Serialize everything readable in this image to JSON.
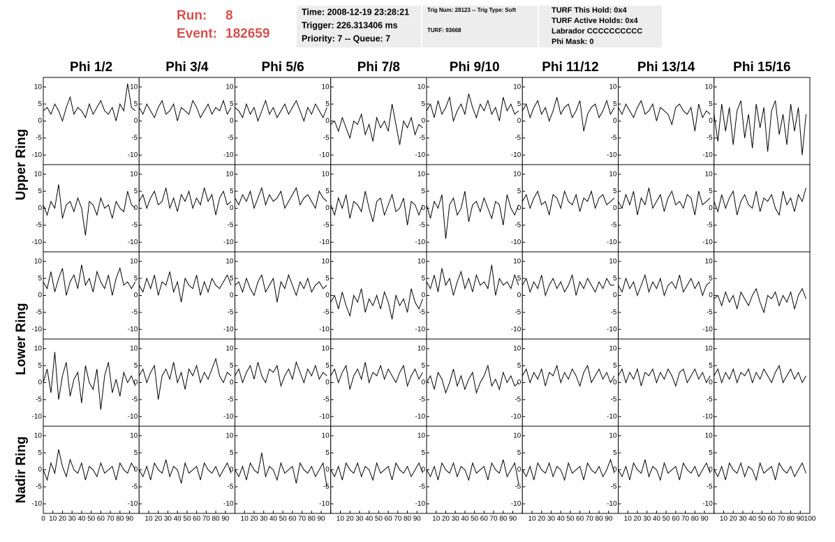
{
  "header": {
    "run_label": "Run:",
    "run": "8",
    "event_label": "Event:",
    "event": "182659",
    "box1": [
      "Time: 2008-12-19 23:28:21",
      "Trigger: 226.313406 ms",
      "Priority: 7 -- Queue: 7"
    ],
    "box2": [
      "Trig Num: 28123 -- Trig Type: Soft",
      "TURF: 93668"
    ],
    "box3": [
      "TURF This Hold: 0x4",
      "TURF Active Holds: 0x4",
      "Labrador CCCCCCCCCC",
      "Phi Mask: 0"
    ]
  },
  "chart_data": {
    "type": "line",
    "color": "#000000",
    "columns": [
      "Phi 1/2",
      "Phi 3/4",
      "Phi 5/6",
      "Phi 7/8",
      "Phi 9/10",
      "Phi 11/12",
      "Phi 13/14",
      "Phi 15/16"
    ],
    "row_groups": [
      "Upper Ring",
      "Lower Ring",
      "Nadir Ring"
    ],
    "xlim": [
      0,
      100
    ],
    "xticks": [
      0,
      10,
      20,
      30,
      40,
      50,
      60,
      70,
      80,
      90,
      100
    ],
    "ylim": [
      -12,
      12
    ],
    "yticks": [
      10,
      5,
      0,
      -5,
      -10
    ],
    "x": [
      0,
      4,
      8,
      12,
      16,
      20,
      24,
      28,
      32,
      36,
      40,
      44,
      48,
      52,
      56,
      60,
      64,
      68,
      72,
      76,
      80,
      84,
      88,
      92,
      96
    ],
    "panels": [
      [
        [
          3,
          4,
          2,
          5,
          3,
          0,
          4,
          7,
          2,
          4,
          3,
          1,
          5,
          2,
          4,
          6,
          3,
          2,
          4,
          0,
          5,
          3,
          11,
          4,
          3
        ],
        [
          4,
          2,
          5,
          3,
          1,
          4,
          6,
          2,
          3,
          5,
          0,
          4,
          3,
          2,
          6,
          4,
          1,
          3,
          5,
          2,
          4,
          3,
          6,
          2,
          4
        ],
        [
          4,
          3,
          1,
          5,
          2,
          4,
          0,
          3,
          6,
          2,
          4,
          1,
          3,
          5,
          2,
          4,
          6,
          3,
          0,
          4,
          2,
          5,
          3,
          1,
          4
        ],
        [
          -1,
          0,
          -3,
          1,
          -2,
          -5,
          0,
          -1,
          2,
          -4,
          -1,
          -6,
          1,
          -2,
          0,
          -3,
          5,
          -1,
          -7,
          0,
          -2,
          1,
          -4,
          -1,
          -2
        ],
        [
          3,
          5,
          1,
          6,
          2,
          4,
          7,
          0,
          3,
          5,
          2,
          8,
          4,
          1,
          5,
          3,
          6,
          2,
          4,
          0,
          7,
          3,
          5,
          2,
          3
        ],
        [
          3,
          5,
          1,
          4,
          6,
          2,
          4,
          0,
          3,
          7,
          2,
          4,
          5,
          1,
          3,
          6,
          -3,
          2,
          4,
          5,
          1,
          3,
          6,
          2,
          4
        ],
        [
          4,
          2,
          5,
          3,
          1,
          4,
          6,
          2,
          3,
          5,
          0,
          4,
          3,
          2,
          -1,
          4,
          5,
          3,
          2,
          4,
          -3,
          5,
          1,
          3,
          2
        ],
        [
          2,
          -6,
          5,
          -3,
          4,
          -7,
          3,
          6,
          -5,
          2,
          -8,
          5,
          -2,
          4,
          -9,
          3,
          6,
          -4,
          2,
          -7,
          5,
          -3,
          4,
          -10,
          2
        ]
      ],
      [
        [
          1,
          -2,
          2,
          0,
          7,
          -3,
          1,
          2,
          -1,
          3,
          0,
          -8,
          2,
          1,
          -2,
          3,
          0,
          1,
          -3,
          2,
          0,
          -1,
          5,
          1,
          0
        ],
        [
          2,
          4,
          0,
          3,
          5,
          1,
          2,
          6,
          0,
          3,
          -1,
          4,
          2,
          5,
          0,
          3,
          1,
          6,
          2,
          4,
          -2,
          3,
          5,
          1,
          2
        ],
        [
          3,
          1,
          4,
          2,
          5,
          0,
          3,
          6,
          1,
          4,
          2,
          3,
          5,
          0,
          2,
          4,
          6,
          1,
          3,
          4,
          2,
          0,
          5,
          3,
          2
        ],
        [
          1,
          -2,
          3,
          0,
          4,
          -3,
          2,
          1,
          -1,
          5,
          0,
          -4,
          2,
          3,
          -2,
          1,
          4,
          -1,
          0,
          3,
          -5,
          2,
          1,
          -2,
          1
        ],
        [
          1,
          -3,
          2,
          0,
          4,
          -9,
          1,
          3,
          -2,
          0,
          5,
          -4,
          1,
          2,
          -1,
          3,
          0,
          -3,
          2,
          1,
          -5,
          4,
          0,
          -2,
          1
        ],
        [
          2,
          4,
          0,
          3,
          5,
          1,
          2,
          -2,
          4,
          3,
          0,
          5,
          2,
          1,
          4,
          -1,
          3,
          2,
          5,
          0,
          3,
          4,
          1,
          2,
          3
        ],
        [
          2,
          0,
          4,
          1,
          5,
          -2,
          3,
          1,
          6,
          0,
          2,
          4,
          -1,
          3,
          5,
          1,
          2,
          0,
          4,
          3,
          -2,
          5,
          1,
          2,
          3
        ],
        [
          2,
          -1,
          4,
          0,
          3,
          5,
          -2,
          2,
          4,
          1,
          0,
          5,
          -1,
          3,
          2,
          4,
          0,
          -2,
          5,
          1,
          3,
          -1,
          4,
          2,
          6
        ]
      ],
      [
        [
          4,
          2,
          7,
          1,
          5,
          8,
          0,
          4,
          6,
          2,
          9,
          3,
          5,
          1,
          7,
          4,
          2,
          6,
          0,
          5,
          8,
          3,
          4,
          2,
          4
        ],
        [
          3,
          1,
          5,
          2,
          6,
          0,
          4,
          3,
          7,
          1,
          4,
          -2,
          5,
          3,
          2,
          6,
          0,
          4,
          1,
          5,
          3,
          2,
          4,
          6,
          3
        ],
        [
          3,
          4,
          1,
          5,
          2,
          0,
          4,
          6,
          1,
          3,
          5,
          -2,
          4,
          2,
          6,
          3,
          0,
          4,
          2,
          5,
          1,
          3,
          4,
          2,
          3
        ],
        [
          -2,
          0,
          -4,
          1,
          -3,
          -6,
          0,
          -2,
          2,
          -5,
          -1,
          -3,
          0,
          -4,
          1,
          -2,
          -7,
          0,
          -3,
          -1,
          -5,
          2,
          -2,
          -4,
          -1
        ],
        [
          4,
          2,
          6,
          1,
          8,
          3,
          5,
          0,
          4,
          7,
          2,
          5,
          1,
          6,
          3,
          4,
          2,
          9,
          0,
          5,
          3,
          4,
          2,
          6,
          3
        ],
        [
          3,
          5,
          1,
          4,
          2,
          6,
          0,
          3,
          5,
          2,
          4,
          1,
          3,
          6,
          0,
          4,
          2,
          5,
          3,
          1,
          4,
          2,
          5,
          3,
          3
        ],
        [
          3,
          1,
          5,
          2,
          4,
          0,
          3,
          6,
          1,
          4,
          2,
          5,
          0,
          3,
          4,
          2,
          6,
          1,
          3,
          5,
          2,
          4,
          0,
          3,
          4
        ],
        [
          -1,
          0,
          -3,
          1,
          -2,
          0,
          -4,
          1,
          -1,
          -3,
          0,
          2,
          -2,
          -5,
          0,
          -1,
          1,
          -3,
          0,
          -2,
          1,
          -4,
          0,
          2,
          -1
        ]
      ],
      [
        [
          0,
          4,
          -3,
          9,
          -5,
          2,
          6,
          -4,
          1,
          3,
          -6,
          5,
          0,
          -2,
          4,
          -8,
          2,
          6,
          -3,
          1,
          -4,
          3,
          0,
          2,
          -1
        ],
        [
          2,
          4,
          0,
          3,
          5,
          -5,
          2,
          4,
          1,
          6,
          0,
          3,
          -2,
          4,
          2,
          5,
          0,
          3,
          1,
          4,
          7,
          2,
          0,
          3,
          2
        ],
        [
          2,
          4,
          0,
          3,
          5,
          1,
          6,
          2,
          0,
          4,
          3,
          5,
          -1,
          2,
          4,
          1,
          6,
          3,
          0,
          4,
          2,
          5,
          1,
          3,
          2
        ],
        [
          2,
          4,
          0,
          3,
          5,
          -2,
          2,
          4,
          1,
          6,
          0,
          3,
          2,
          5,
          1,
          4,
          2,
          0,
          3,
          5,
          -1,
          2,
          4,
          1,
          3
        ],
        [
          0,
          2,
          -2,
          3,
          1,
          -3,
          0,
          4,
          -1,
          2,
          -2,
          1,
          3,
          -3,
          0,
          2,
          5,
          -1,
          1,
          -2,
          3,
          0,
          2,
          -1,
          0
        ],
        [
          2,
          4,
          0,
          3,
          1,
          4,
          -1,
          3,
          2,
          5,
          0,
          3,
          1,
          4,
          2,
          -1,
          3,
          5,
          0,
          2,
          4,
          1,
          3,
          0,
          2
        ],
        [
          2,
          4,
          0,
          3,
          1,
          4,
          -1,
          3,
          2,
          4,
          0,
          3,
          1,
          4,
          2,
          -1,
          3,
          4,
          0,
          2,
          4,
          1,
          3,
          0,
          2
        ],
        [
          2,
          4,
          0,
          3,
          1,
          4,
          0,
          3,
          2,
          4,
          0,
          3,
          1,
          4,
          2,
          0,
          3,
          5,
          0,
          2,
          4,
          1,
          3,
          0,
          2
        ]
      ],
      [
        [
          0,
          -3,
          2,
          -1,
          6,
          1,
          -2,
          3,
          0,
          -1,
          2,
          -3,
          1,
          0,
          -2,
          2,
          -1,
          0,
          1,
          -3,
          2,
          0,
          -1,
          2,
          0
        ],
        [
          0,
          -2,
          1,
          -3,
          2,
          0,
          -1,
          3,
          -2,
          1,
          0,
          -4,
          2,
          -1,
          0,
          1,
          -3,
          2,
          0,
          -1,
          1,
          -2,
          0,
          2,
          -1
        ],
        [
          0,
          -2,
          1,
          -3,
          2,
          0,
          -1,
          5,
          -2,
          1,
          0,
          -3,
          2,
          -1,
          0,
          1,
          -4,
          2,
          0,
          -1,
          1,
          -2,
          0,
          2,
          -5
        ],
        [
          0,
          -2,
          1,
          -3,
          2,
          0,
          -1,
          2,
          -2,
          1,
          0,
          -3,
          2,
          -1,
          0,
          1,
          -3,
          2,
          0,
          -1,
          1,
          -2,
          0,
          2,
          -1
        ],
        [
          0,
          -2,
          1,
          -3,
          2,
          0,
          -1,
          2,
          -2,
          1,
          0,
          -3,
          2,
          -1,
          0,
          1,
          -3,
          2,
          0,
          -1,
          3,
          -2,
          0,
          2,
          -4
        ],
        [
          0,
          -2,
          1,
          -3,
          2,
          0,
          -1,
          2,
          -2,
          1,
          0,
          -3,
          2,
          -1,
          0,
          1,
          -3,
          2,
          0,
          -1,
          1,
          -2,
          0,
          3,
          -1
        ],
        [
          0,
          -2,
          1,
          -3,
          2,
          0,
          -1,
          3,
          -2,
          1,
          0,
          -3,
          2,
          -1,
          0,
          1,
          -3,
          2,
          0,
          -1,
          1,
          -2,
          0,
          2,
          -1
        ],
        [
          0,
          -2,
          1,
          -3,
          2,
          0,
          -1,
          2,
          -2,
          1,
          0,
          -3,
          2,
          -1,
          0,
          1,
          -3,
          2,
          0,
          -1,
          1,
          -2,
          0,
          2,
          -1
        ]
      ]
    ]
  }
}
